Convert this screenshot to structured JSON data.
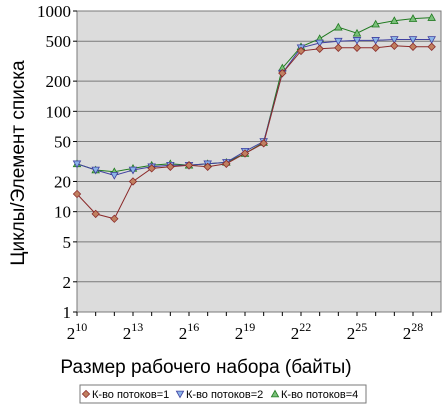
{
  "chart_data": {
    "type": "line",
    "xlabel": "Размер рабочего набора (байты)",
    "ylabel": "Циклы/Элемент списка",
    "y_scale": "log",
    "ylim": [
      1,
      1000
    ],
    "y_ticks": [
      1,
      2,
      5,
      10,
      20,
      50,
      100,
      200,
      500,
      1000
    ],
    "y_tick_labels": [
      "1",
      "2",
      "5",
      "10",
      "20",
      "50",
      "100",
      "200",
      "500",
      "1000"
    ],
    "x_scale": "log2",
    "xlim_exp": [
      10,
      29.5
    ],
    "x_ticks": [
      {
        "base": "2",
        "exp": "10",
        "value_exp": 10
      },
      {
        "base": "2",
        "exp": "13",
        "value_exp": 13
      },
      {
        "base": "2",
        "exp": "16",
        "value_exp": 16
      },
      {
        "base": "2",
        "exp": "19",
        "value_exp": 19
      },
      {
        "base": "2",
        "exp": "22",
        "value_exp": 22
      },
      {
        "base": "2",
        "exp": "25",
        "value_exp": 25
      },
      {
        "base": "2",
        "exp": "28",
        "value_exp": 28
      }
    ],
    "grid": "horizontal",
    "plot_background": "#dcdcdc",
    "x_exp": [
      10,
      11,
      12,
      13,
      14,
      15,
      16,
      17,
      18,
      19,
      20,
      21,
      22,
      23,
      24,
      25,
      26,
      27,
      28,
      29
    ],
    "series": [
      {
        "name": "К-во потоков=1",
        "marker": "diamond",
        "color": "#8b2a2a",
        "fill": "#c08060",
        "values": [
          15,
          9.5,
          8.5,
          20,
          27,
          28,
          29,
          28,
          30,
          38,
          48,
          240,
          400,
          420,
          430,
          430,
          430,
          450,
          440,
          440
        ]
      },
      {
        "name": "К-во потоков=2",
        "marker": "triangle-down",
        "color": "#4040a0",
        "fill": "#8ab4e8",
        "values": [
          30,
          26,
          23,
          26,
          28,
          29,
          29,
          30,
          31,
          40,
          50,
          240,
          430,
          480,
          500,
          510,
          510,
          520,
          520,
          520
        ]
      },
      {
        "name": "К-во потоков=4",
        "marker": "triangle-up",
        "color": "#207a20",
        "fill": "#7ac07a",
        "values": [
          30,
          26,
          25,
          27,
          29,
          30,
          29,
          30,
          31,
          38,
          49,
          270,
          440,
          530,
          690,
          600,
          740,
          800,
          840,
          860
        ]
      }
    ]
  }
}
